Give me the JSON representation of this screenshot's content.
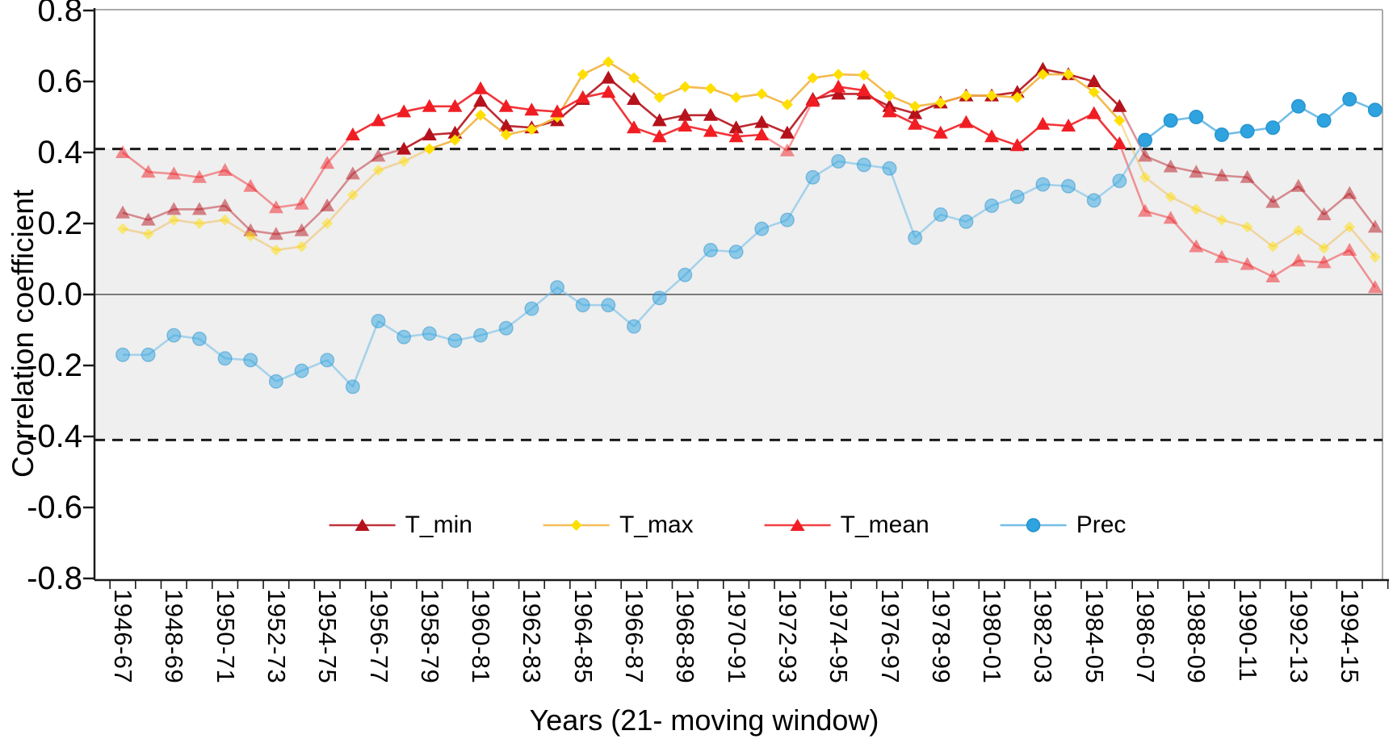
{
  "y_axis": {
    "title": "Correlation coefficient",
    "tick_labels": [
      "0.8",
      "0.6",
      "0.4",
      "0.2",
      "0.0",
      "-0.2",
      "-0.4",
      "-0.6",
      "-0.8"
    ],
    "min": -0.8,
    "max": 0.8,
    "step": 0.2
  },
  "x_axis": {
    "title": "Years (21- moving window)",
    "tick_labels": [
      "1946-67",
      "1948-69",
      "1950-71",
      "1952-73",
      "1954-75",
      "1956-77",
      "1958-79",
      "1960-81",
      "1962-83",
      "1964-85",
      "1966-87",
      "1968-89",
      "1970-91",
      "1972-93",
      "1974-95",
      "1976-97",
      "1978-99",
      "1980-01",
      "1982-03",
      "1984-05",
      "1986-07",
      "1988-09",
      "1990-11",
      "1992-13",
      "1994-15"
    ]
  },
  "significance_band": {
    "upper": 0.41,
    "lower": -0.41,
    "band_color": "#EFEFEF",
    "dash_color": "#1a1a1a",
    "zero_line_color": "#7a7a7a"
  },
  "chart_data": {
    "type": "line",
    "title": "",
    "xlabel": "Years (21- moving window)",
    "ylabel": "Correlation coefficient",
    "ylim": [
      -0.8,
      0.8
    ],
    "x_start_year": 1946,
    "x_end_year": 1995,
    "legend_position": "bottom-center",
    "grid": false,
    "series": [
      {
        "name": "T_min",
        "marker": "triangle",
        "color": "#B5121B",
        "line_color": "#B5121B",
        "values": [
          0.23,
          0.21,
          0.24,
          0.24,
          0.25,
          0.18,
          0.17,
          0.18,
          0.25,
          0.34,
          0.39,
          0.41,
          0.45,
          0.455,
          0.545,
          0.475,
          0.47,
          0.49,
          0.55,
          0.61,
          0.55,
          0.49,
          0.505,
          0.505,
          0.47,
          0.485,
          0.455,
          0.55,
          0.565,
          0.565,
          0.53,
          0.51,
          0.54,
          0.56,
          0.56,
          0.57,
          0.635,
          0.62,
          0.6,
          0.53,
          0.39,
          0.36,
          0.345,
          0.335,
          0.33,
          0.26,
          0.305,
          0.225,
          0.285,
          0.19
        ]
      },
      {
        "name": "T_max",
        "marker": "diamond",
        "color": "#FFDF00",
        "line_color": "#F2B33D",
        "values": [
          0.185,
          0.17,
          0.21,
          0.2,
          0.21,
          0.165,
          0.125,
          0.135,
          0.2,
          0.28,
          0.35,
          0.375,
          0.41,
          0.435,
          0.505,
          0.45,
          0.465,
          0.5,
          0.62,
          0.655,
          0.61,
          0.555,
          0.585,
          0.58,
          0.555,
          0.565,
          0.535,
          0.61,
          0.62,
          0.618,
          0.56,
          0.53,
          0.54,
          0.56,
          0.56,
          0.555,
          0.62,
          0.62,
          0.57,
          0.49,
          0.33,
          0.275,
          0.24,
          0.21,
          0.19,
          0.135,
          0.18,
          0.13,
          0.19,
          0.105
        ]
      },
      {
        "name": "T_mean",
        "marker": "triangle",
        "color": "#F01E23",
        "line_color": "#F01E23",
        "values": [
          0.4,
          0.345,
          0.34,
          0.33,
          0.35,
          0.305,
          0.245,
          0.255,
          0.37,
          0.45,
          0.49,
          0.515,
          0.53,
          0.53,
          0.58,
          0.53,
          0.52,
          0.515,
          0.555,
          0.57,
          0.47,
          0.445,
          0.475,
          0.46,
          0.445,
          0.45,
          0.405,
          0.545,
          0.585,
          0.575,
          0.515,
          0.48,
          0.455,
          0.485,
          0.445,
          0.42,
          0.48,
          0.475,
          0.51,
          0.425,
          0.235,
          0.215,
          0.135,
          0.105,
          0.085,
          0.05,
          0.095,
          0.09,
          0.125,
          0.02
        ]
      },
      {
        "name": "Prec",
        "marker": "circle",
        "color": "#2EA3DF",
        "line_color": "#74BEE7",
        "values": [
          -0.17,
          -0.17,
          -0.115,
          -0.125,
          -0.18,
          -0.185,
          -0.245,
          -0.215,
          -0.185,
          -0.26,
          -0.075,
          -0.12,
          -0.11,
          -0.13,
          -0.115,
          -0.095,
          -0.04,
          0.02,
          -0.03,
          -0.03,
          -0.09,
          -0.01,
          0.055,
          0.125,
          0.12,
          0.185,
          0.21,
          0.33,
          0.375,
          0.365,
          0.355,
          0.16,
          0.225,
          0.205,
          0.25,
          0.275,
          0.31,
          0.305,
          0.265,
          0.32,
          0.435,
          0.49,
          0.5,
          0.45,
          0.46,
          0.47,
          0.53,
          0.49,
          0.55,
          0.52
        ]
      }
    ]
  }
}
